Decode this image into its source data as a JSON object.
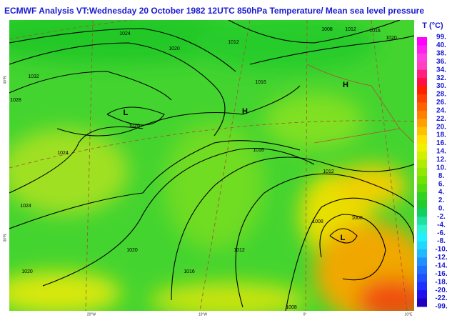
{
  "header": {
    "title": "ECMWF  Analysis VT:Wednesday 20 October 1982 12UTC 850hPa Temperature/  Mean sea level pressure"
  },
  "legend": {
    "title": "T (°C)",
    "labels": [
      "99.",
      "40.",
      "38.",
      "36.",
      "34.",
      "32.",
      "30.",
      "28.",
      "26.",
      "24.",
      "22.",
      "20.",
      "18.",
      "16.",
      "14.",
      "12.",
      "10.",
      "8.",
      "6.",
      "4.",
      "2.",
      "0.",
      "-2.",
      "-4.",
      "-6.",
      "-8.",
      "-10.",
      "-12.",
      "-14.",
      "-16.",
      "-18.",
      "-20.",
      "-22.",
      "-99."
    ],
    "colors": [
      "#ff00ff",
      "#ff20f0",
      "#ff40e0",
      "#ff40c0",
      "#ff2080",
      "#ff1040",
      "#ff2000",
      "#ff4000",
      "#ff6000",
      "#ff8000",
      "#ffa000",
      "#ffc000",
      "#ffe000",
      "#f0f000",
      "#d0f000",
      "#b0ec00",
      "#90e800",
      "#70e400",
      "#50dc10",
      "#30d420",
      "#20cc30",
      "#10d060",
      "#20e0a0",
      "#30f0d0",
      "#20f0ff",
      "#20d8ff",
      "#20b8ff",
      "#2090ff",
      "#2070ff",
      "#2050ff",
      "#2030ff",
      "#2010f0",
      "#2000c0"
    ]
  },
  "map": {
    "pressure_labels": [
      "1024",
      "1020",
      "1032",
      "1028",
      "1012",
      "1008",
      "1012",
      "1016",
      "1020",
      "1016",
      "1020",
      "1024",
      "1024",
      "1016",
      "1012",
      "1008",
      "1008",
      "1012",
      "1020",
      "1016",
      "1020",
      "1008"
    ],
    "systems": [
      "L",
      "H",
      "H",
      "L"
    ],
    "lat_labels": [
      "40°N",
      "30°N"
    ],
    "lon_labels": [
      "20°W",
      "10°W",
      "0°",
      "10°E"
    ]
  }
}
